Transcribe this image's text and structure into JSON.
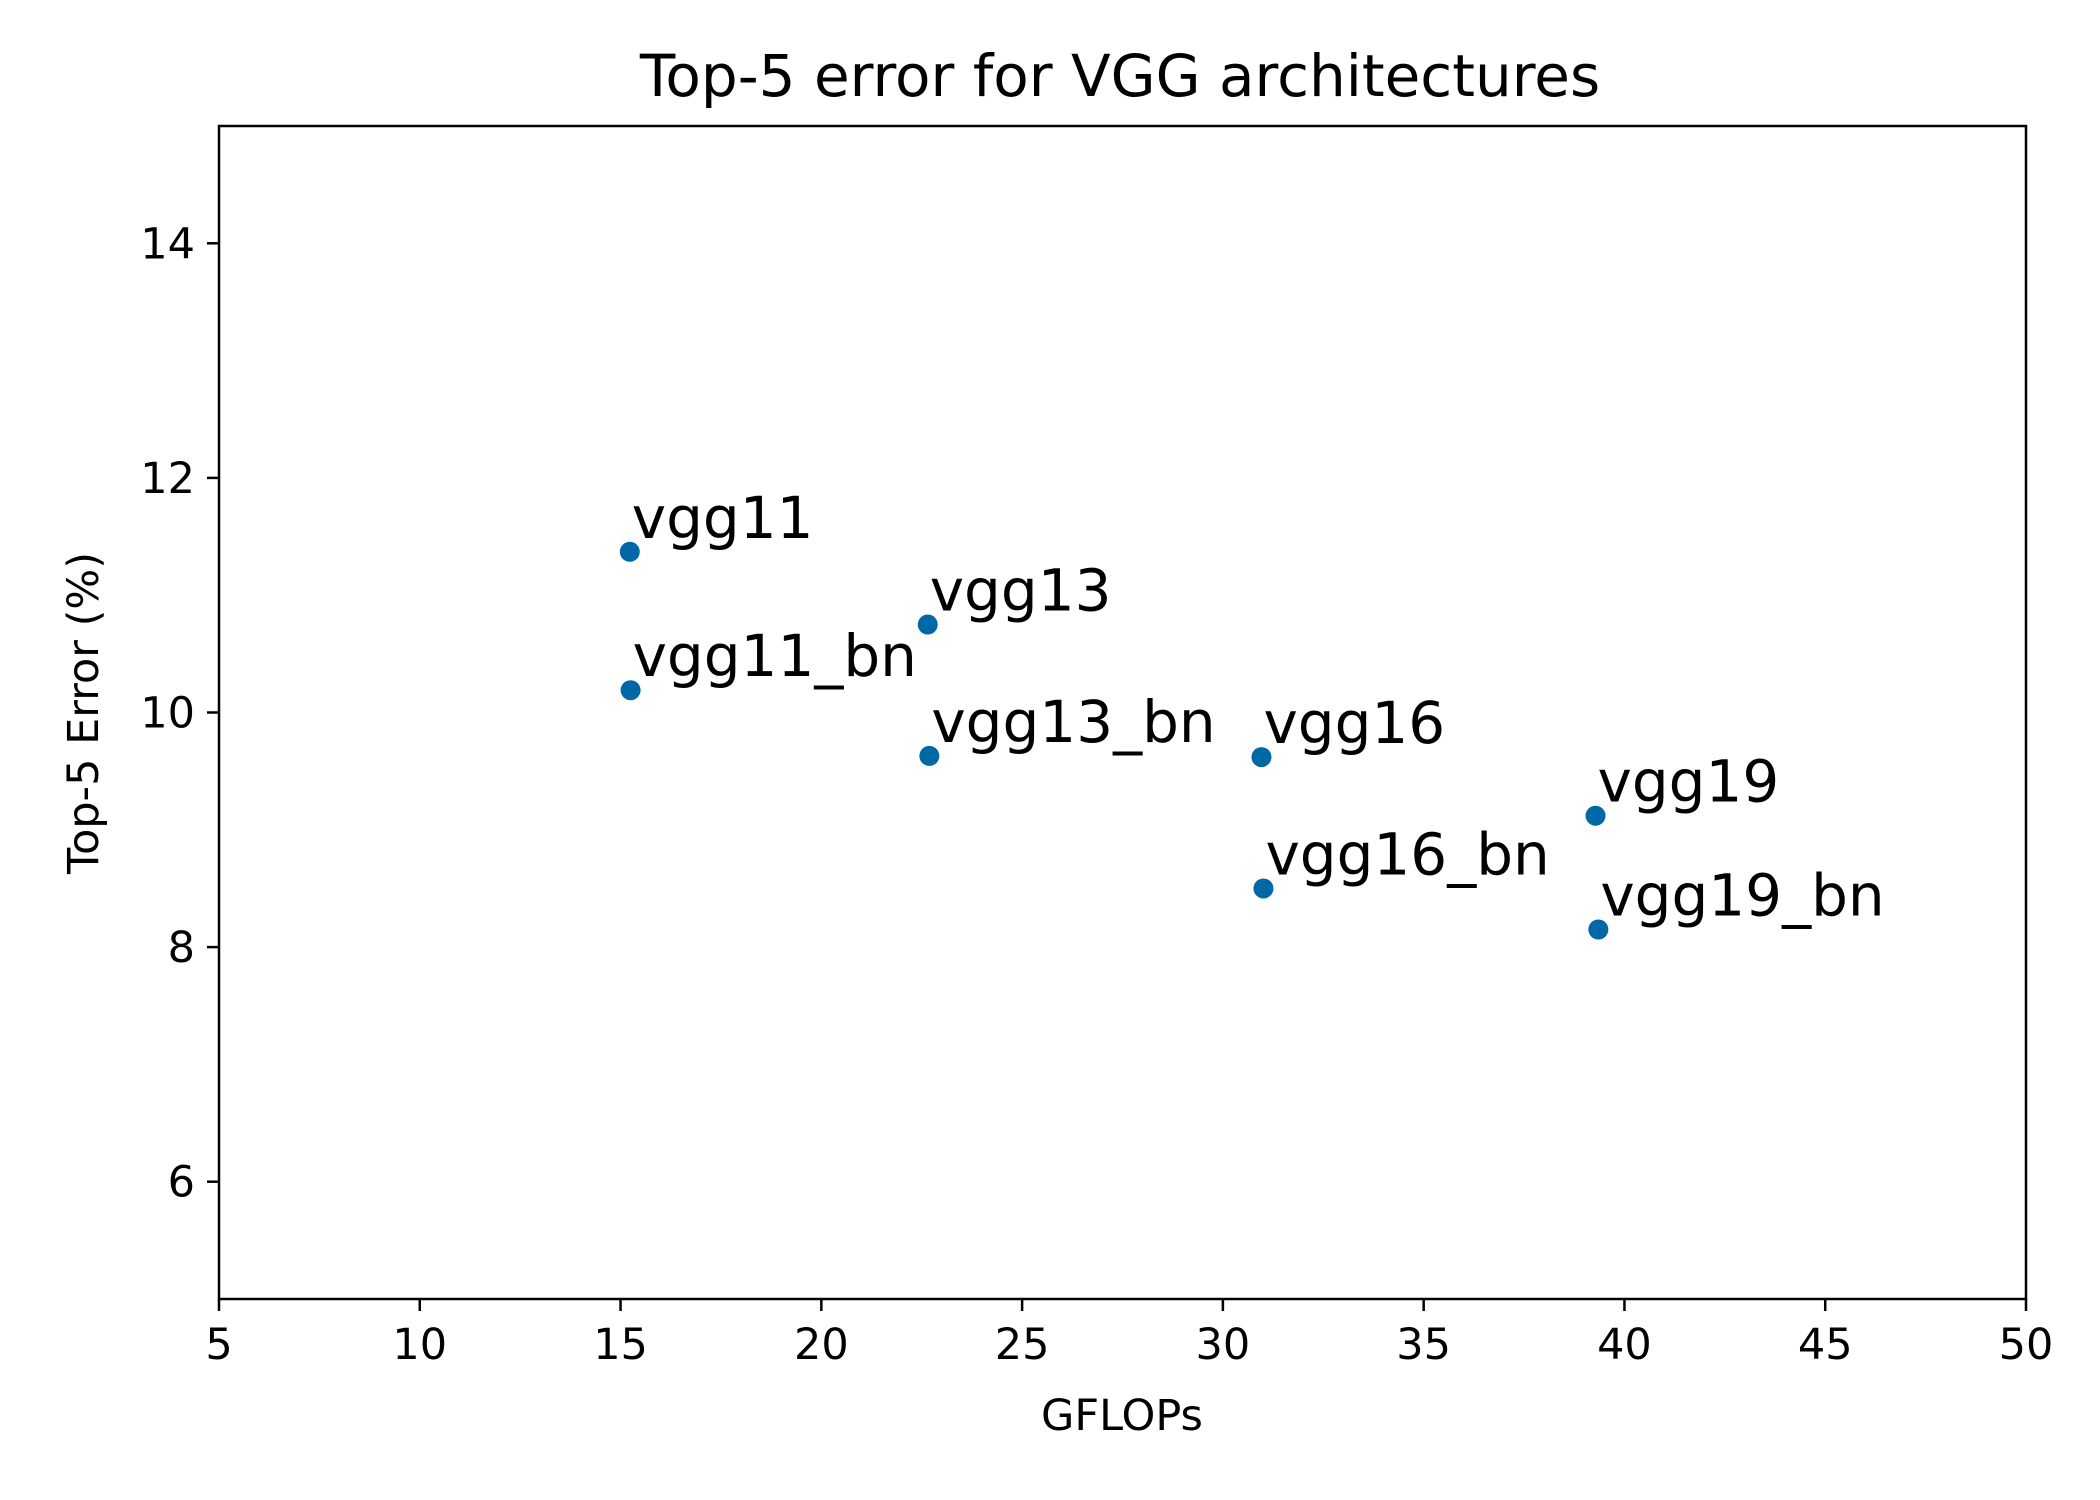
{
  "chart_data": {
    "type": "scatter",
    "title": "Top-5 error for VGG architectures",
    "xlabel": "GFLOPs",
    "ylabel": "Top-5 Error (%)",
    "xlim": [
      5,
      50
    ],
    "ylim": [
      5,
      15
    ],
    "xticks": [
      5,
      10,
      15,
      20,
      25,
      30,
      35,
      40,
      45,
      50
    ],
    "yticks": [
      6,
      8,
      10,
      12,
      14
    ],
    "grid": false,
    "marker_color": "#0068a6",
    "points": [
      {
        "label": "vgg11",
        "x": 15.23,
        "y": 11.37
      },
      {
        "label": "vgg11_bn",
        "x": 15.25,
        "y": 10.19
      },
      {
        "label": "vgg13",
        "x": 22.65,
        "y": 10.75
      },
      {
        "label": "vgg13_bn",
        "x": 22.69,
        "y": 9.63
      },
      {
        "label": "vgg16",
        "x": 30.96,
        "y": 9.62
      },
      {
        "label": "vgg16_bn",
        "x": 31.01,
        "y": 8.5
      },
      {
        "label": "vgg19",
        "x": 39.28,
        "y": 9.12
      },
      {
        "label": "vgg19_bn",
        "x": 39.35,
        "y": 8.15
      }
    ]
  }
}
